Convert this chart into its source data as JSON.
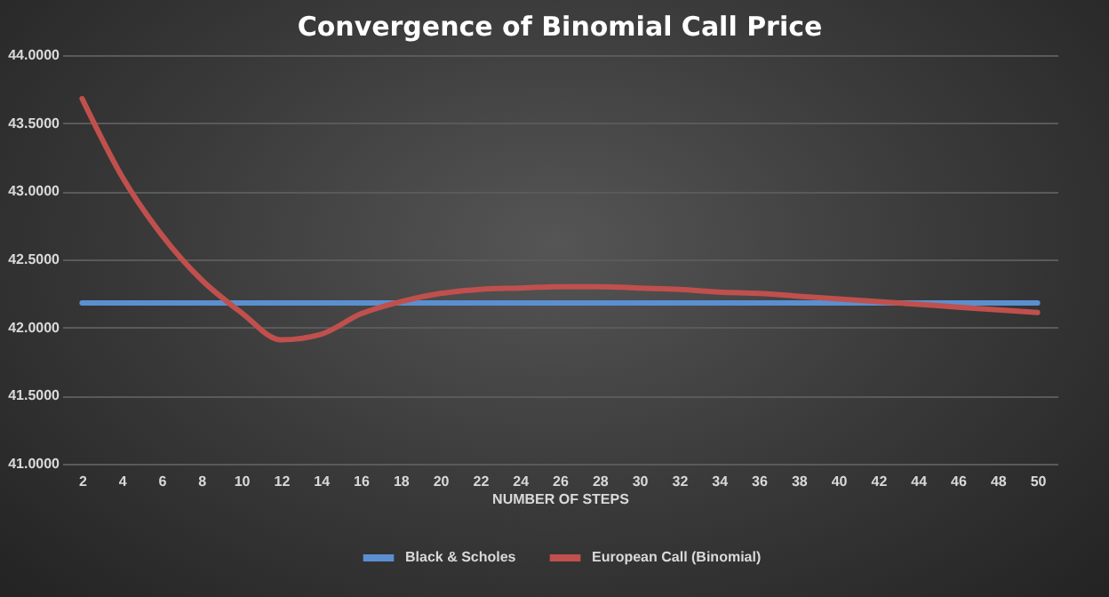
{
  "chart_data": {
    "type": "line",
    "title": "Convergence of Binomial Call Price",
    "xlabel": "NUMBER OF STEPS",
    "x": [
      2,
      4,
      6,
      8,
      10,
      12,
      14,
      16,
      18,
      20,
      22,
      24,
      26,
      28,
      30,
      32,
      34,
      36,
      38,
      40,
      42,
      44,
      46,
      48,
      50
    ],
    "xlim": [
      1,
      51
    ],
    "xticks": [
      2,
      4,
      6,
      8,
      10,
      12,
      14,
      16,
      18,
      20,
      22,
      24,
      26,
      28,
      30,
      32,
      34,
      36,
      38,
      40,
      42,
      44,
      46,
      48,
      50
    ],
    "series": [
      {
        "name": "Black & Scholes",
        "color": "#5b8fd0",
        "values": [
          42.18,
          42.18,
          42.18,
          42.18,
          42.18,
          42.18,
          42.18,
          42.18,
          42.18,
          42.18,
          42.18,
          42.18,
          42.18,
          42.18,
          42.18,
          42.18,
          42.18,
          42.18,
          42.18,
          42.18,
          42.18,
          42.18,
          42.18,
          42.18,
          42.18
        ]
      },
      {
        "name": "European Call (Binomial)",
        "color": "#c0504d",
        "values": [
          43.68,
          43.11,
          42.68,
          42.35,
          42.11,
          41.91,
          41.95,
          42.1,
          42.19,
          42.25,
          42.28,
          42.29,
          42.3,
          42.3,
          42.29,
          42.28,
          42.26,
          42.25,
          42.23,
          42.21,
          42.19,
          42.17,
          42.15,
          42.13,
          42.11
        ]
      }
    ],
    "ylim": [
      41,
      44
    ],
    "yticks": [
      {
        "value": 41,
        "label": "41.0000"
      },
      {
        "value": 41.5,
        "label": "41.5000"
      },
      {
        "value": 42,
        "label": "42.0000"
      },
      {
        "value": 42.5,
        "label": "42.5000"
      },
      {
        "value": 43,
        "label": "43.0000"
      },
      {
        "value": 43.5,
        "label": "43.5000"
      },
      {
        "value": 44,
        "label": "44.0000"
      }
    ],
    "grid": "y",
    "legend": "bottom",
    "marker": "none",
    "line_style": "solid"
  }
}
